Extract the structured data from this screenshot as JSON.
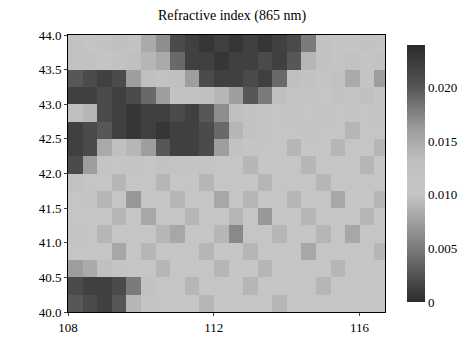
{
  "chart_data": {
    "type": "heatmap",
    "title": "Refractive index (865 nm)",
    "xlim": [
      108,
      116.7
    ],
    "xticks": [
      108,
      112,
      116
    ],
    "ylim": [
      40,
      44
    ],
    "yticks": [
      {
        "value": 40,
        "label": "40.0"
      },
      40.5,
      {
        "value": 41,
        "label": "41.0"
      },
      41.5,
      {
        "value": 42,
        "label": "42.0"
      },
      42.5,
      {
        "value": 43,
        "label": "43.0"
      },
      43.5,
      {
        "value": 44,
        "label": "44.0"
      }
    ],
    "zlim": [
      0,
      0.024
    ],
    "zticks": [
      0,
      0.005,
      {
        "value": 0.01,
        "label": "0.010"
      },
      0.015,
      {
        "value": 0.02,
        "label": "0.020"
      }
    ],
    "x": [
      108.2,
      108.6,
      109.0,
      109.4,
      109.8,
      110.2,
      110.6,
      111.0,
      111.4,
      111.8,
      112.2,
      112.6,
      113.0,
      113.4,
      113.8,
      114.2,
      114.6,
      115.0,
      115.4,
      115.8,
      116.2,
      116.6
    ],
    "y": [
      40.125,
      40.375,
      40.625,
      40.875,
      41.125,
      41.375,
      41.625,
      41.875,
      42.125,
      42.375,
      42.625,
      42.875,
      43.125,
      43.375,
      43.625,
      43.875
    ],
    "z": [
      [
        0.02,
        0.021,
        0.022,
        0.02,
        0.014,
        0.011,
        0.01,
        0.01,
        0.01,
        0.009,
        0.01,
        0.01,
        0.01,
        0.01,
        0.009,
        0.01,
        0.01,
        0.01,
        0.01,
        0.01,
        0.01,
        0.01
      ],
      [
        0.021,
        0.022,
        0.022,
        0.021,
        0.018,
        0.012,
        0.01,
        0.01,
        0.009,
        0.01,
        0.01,
        0.01,
        0.009,
        0.01,
        0.01,
        0.01,
        0.01,
        0.009,
        0.01,
        0.01,
        0.01,
        0.01
      ],
      [
        0.016,
        0.015,
        0.013,
        0.011,
        0.01,
        0.01,
        0.009,
        0.01,
        0.01,
        0.01,
        0.009,
        0.01,
        0.01,
        0.009,
        0.01,
        0.01,
        0.01,
        0.01,
        0.009,
        0.01,
        0.01,
        0.01
      ],
      [
        0.01,
        0.01,
        0.01,
        0.008,
        0.01,
        0.009,
        0.01,
        0.01,
        0.01,
        0.009,
        0.01,
        0.01,
        0.009,
        0.01,
        0.01,
        0.01,
        0.008,
        0.01,
        0.01,
        0.01,
        0.01,
        0.009
      ],
      [
        0.011,
        0.01,
        0.009,
        0.01,
        0.01,
        0.01,
        0.009,
        0.008,
        0.01,
        0.01,
        0.009,
        0.006,
        0.01,
        0.01,
        0.009,
        0.01,
        0.01,
        0.009,
        0.01,
        0.008,
        0.01,
        0.01
      ],
      [
        0.01,
        0.01,
        0.01,
        0.009,
        0.01,
        0.008,
        0.01,
        0.01,
        0.009,
        0.01,
        0.01,
        0.009,
        0.01,
        0.007,
        0.01,
        0.01,
        0.009,
        0.01,
        0.01,
        0.01,
        0.009,
        0.01
      ],
      [
        0.01,
        0.011,
        0.009,
        0.01,
        0.007,
        0.01,
        0.01,
        0.009,
        0.01,
        0.01,
        0.008,
        0.01,
        0.009,
        0.01,
        0.01,
        0.009,
        0.01,
        0.01,
        0.008,
        0.01,
        0.01,
        0.009
      ],
      [
        0.012,
        0.01,
        0.01,
        0.009,
        0.01,
        0.01,
        0.009,
        0.01,
        0.01,
        0.009,
        0.01,
        0.01,
        0.01,
        0.009,
        0.01,
        0.01,
        0.01,
        0.009,
        0.01,
        0.01,
        0.01,
        0.01
      ],
      [
        0.021,
        0.016,
        0.011,
        0.01,
        0.011,
        0.01,
        0.012,
        0.011,
        0.01,
        0.011,
        0.01,
        0.01,
        0.009,
        0.01,
        0.01,
        0.01,
        0.009,
        0.01,
        0.01,
        0.01,
        0.009,
        0.01
      ],
      [
        0.022,
        0.021,
        0.015,
        0.013,
        0.014,
        0.016,
        0.02,
        0.022,
        0.022,
        0.021,
        0.016,
        0.012,
        0.011,
        0.01,
        0.01,
        0.009,
        0.01,
        0.01,
        0.009,
        0.01,
        0.01,
        0.009
      ],
      [
        0.022,
        0.021,
        0.02,
        0.022,
        0.023,
        0.022,
        0.023,
        0.022,
        0.022,
        0.021,
        0.019,
        0.014,
        0.012,
        0.011,
        0.01,
        0.01,
        0.011,
        0.01,
        0.01,
        0.009,
        0.01,
        0.01
      ],
      [
        0.013,
        0.014,
        0.021,
        0.022,
        0.023,
        0.022,
        0.022,
        0.021,
        0.022,
        0.02,
        0.017,
        0.013,
        0.012,
        0.011,
        0.01,
        0.011,
        0.01,
        0.011,
        0.01,
        0.011,
        0.01,
        0.011
      ],
      [
        0.022,
        0.022,
        0.021,
        0.022,
        0.021,
        0.019,
        0.016,
        0.012,
        0.012,
        0.013,
        0.014,
        0.016,
        0.02,
        0.018,
        0.013,
        0.011,
        0.011,
        0.01,
        0.012,
        0.011,
        0.013,
        0.011
      ],
      [
        0.02,
        0.021,
        0.022,
        0.021,
        0.016,
        0.013,
        0.012,
        0.013,
        0.016,
        0.021,
        0.022,
        0.022,
        0.021,
        0.022,
        0.019,
        0.013,
        0.012,
        0.011,
        0.012,
        0.015,
        0.011,
        0.016
      ],
      [
        0.012,
        0.012,
        0.011,
        0.012,
        0.013,
        0.014,
        0.015,
        0.019,
        0.022,
        0.022,
        0.023,
        0.022,
        0.022,
        0.021,
        0.022,
        0.02,
        0.014,
        0.012,
        0.011,
        0.012,
        0.011,
        0.012
      ],
      [
        0.012,
        0.011,
        0.012,
        0.013,
        0.012,
        0.015,
        0.017,
        0.021,
        0.022,
        0.023,
        0.022,
        0.023,
        0.022,
        0.023,
        0.022,
        0.021,
        0.018,
        0.012,
        0.011,
        0.011,
        0.012,
        0.011
      ]
    ]
  }
}
